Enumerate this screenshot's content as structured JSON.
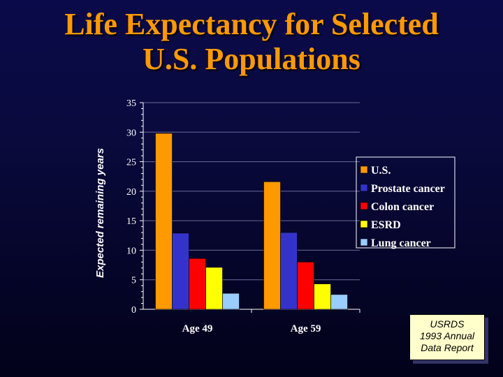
{
  "slide": {
    "title_line1": "Life Expectancy for Selected",
    "title_line2": "U.S. Populations"
  },
  "source_note": {
    "line1": "USRDS",
    "line2": "1993 Annual",
    "line3": "Data Report"
  },
  "colors": {
    "U.S.": "#ff9900",
    "Prostate cancer": "#3333cc",
    "Colon cancer": "#ff0000",
    "ESRD": "#ffff00",
    "Lung cancer": "#99ccff"
  },
  "chart_data": {
    "type": "bar",
    "title": "Life Expectancy for Selected U.S. Populations",
    "xlabel": "",
    "ylabel": "Expected remaining years",
    "categories": [
      "Age 49",
      "Age 59"
    ],
    "series": [
      {
        "name": "U.S.",
        "values": [
          29.8,
          21.6
        ]
      },
      {
        "name": "Prostate cancer",
        "values": [
          12.9,
          13.0
        ]
      },
      {
        "name": "Colon cancer",
        "values": [
          8.6,
          8.0
        ]
      },
      {
        "name": "ESRD",
        "values": [
          7.1,
          4.3
        ]
      },
      {
        "name": "Lung cancer",
        "values": [
          2.7,
          2.5
        ]
      }
    ],
    "ylim": [
      0,
      35
    ],
    "yticks": [
      "0",
      "5",
      "10",
      "15",
      "20",
      "25",
      "30",
      "35"
    ],
    "grid": true,
    "legend_position": "right"
  }
}
